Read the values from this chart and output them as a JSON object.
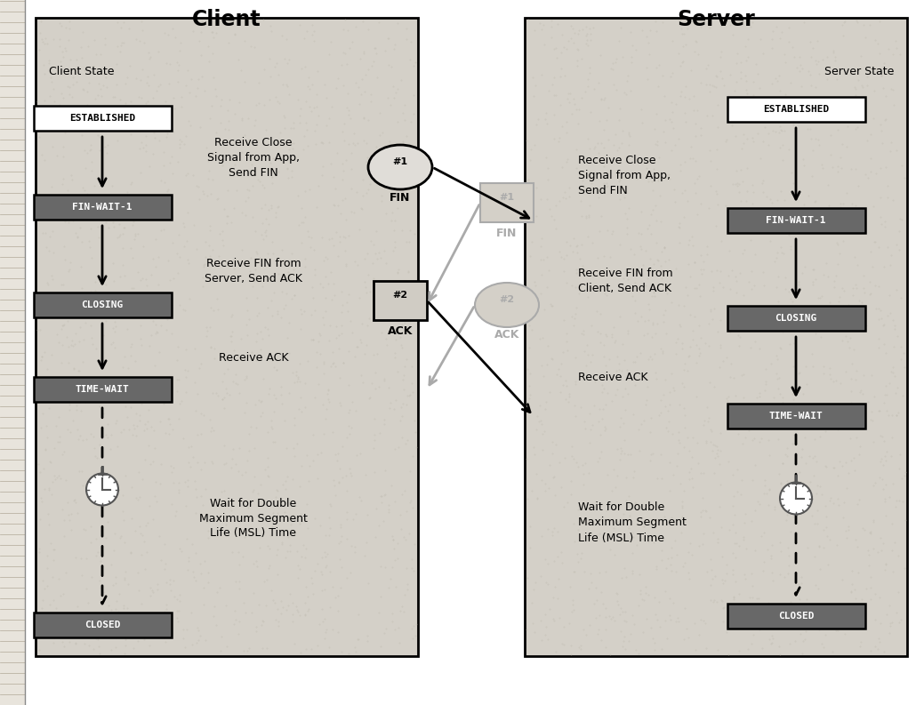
{
  "title_client": "Client",
  "title_server": "Server",
  "panel_bg": "#d4d0c8",
  "center_bg": "#ffffff",
  "box_light_bg": "#ffffff",
  "box_dark_bg": "#686868",
  "box_dark_text": "#ffffff",
  "box_light_text": "#000000",
  "spine_color": "#404040",
  "client_state_label": "Client State",
  "server_state_label": "Server State",
  "client_desc1": "Receive Close\nSignal from App,\nSend FIN",
  "client_desc2": "Receive FIN from\nServer, Send ACK",
  "client_desc3": "Receive ACK",
  "client_desc4": "Wait for Double\nMaximum Segment\nLife (MSL) Time",
  "server_desc1": "Receive Close\nSignal from App,\nSend FIN",
  "server_desc2": "Receive FIN from\nClient, Send ACK",
  "server_desc3": "Receive ACK",
  "server_desc4": "Wait for Double\nMaximum Segment\nLife (MSL) Time",
  "fig_w": 10.3,
  "fig_h": 7.93,
  "dpi": 100
}
